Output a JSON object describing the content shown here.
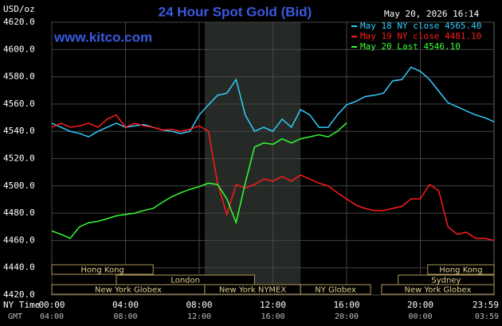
{
  "chart_data": {
    "type": "line",
    "title": "24 Hour Spot Gold (Bid)",
    "unit_label": "USD/oz",
    "site": "www.kitco.com",
    "timestamp": "May 20, 2026 16:14",
    "x_row_label": "NY Time",
    "x2_row_label": "GMT",
    "x": [
      0,
      0.5,
      1,
      1.5,
      2,
      2.5,
      3,
      3.5,
      4,
      4.5,
      5,
      5.5,
      6,
      6.5,
      7,
      7.5,
      8,
      8.5,
      9,
      9.5,
      10,
      10.5,
      11,
      11.5,
      12,
      12.5,
      13,
      13.5,
      14,
      14.5,
      15,
      15.5,
      16,
      16.5,
      17,
      17.5,
      18,
      18.5,
      19,
      19.5,
      20,
      20.5,
      21,
      21.5,
      22,
      22.5,
      23,
      23.5,
      24
    ],
    "series": [
      {
        "name": "May 18 NY close 4565.40",
        "color": "#33ccff",
        "values": [
          4546,
          4543,
          4540,
          4538.5,
          4536,
          4540,
          4543,
          4546,
          4543,
          4544,
          4545,
          4543,
          4541,
          4540,
          4538.5,
          4540,
          4552,
          4559.5,
          4566.5,
          4568,
          4578,
          4552,
          4540,
          4543,
          4540,
          4549,
          4543,
          4556,
          4552,
          4543,
          4543,
          4552,
          4559.5,
          4562,
          4565.5,
          4566.5,
          4568,
          4577,
          4578,
          4587,
          4584,
          4578,
          4569.5,
          4561,
          4558,
          4555,
          4552,
          4550,
          4547
        ]
      },
      {
        "name": "May 19 NY close 4481.10",
        "color": "#ff1a1a",
        "values": [
          4543,
          4546,
          4543,
          4544,
          4546,
          4543,
          4549,
          4552,
          4543,
          4546,
          4544,
          4543,
          4541,
          4541.5,
          4540,
          4541.5,
          4544,
          4540,
          4502,
          4479,
          4501,
          4498.5,
          4501,
          4505,
          4503.5,
          4507,
          4503.5,
          4508,
          4505,
          4502,
          4500,
          4495,
          4490.5,
          4486,
          4483.5,
          4482,
          4482,
          4483.5,
          4485,
          4490.5,
          4490.5,
          4501,
          4496.5,
          4470,
          4464.5,
          4466,
          4461.5,
          4461.5,
          4460
        ]
      },
      {
        "name": "May 20 Last 4546.10",
        "color": "#33ff33",
        "values": [
          4467,
          4464.5,
          4461.5,
          4470,
          4473,
          4474,
          4476,
          4478,
          4479,
          4480,
          4482,
          4483.5,
          4488,
          4492,
          4495,
          4497.5,
          4499.5,
          4502,
          4501,
          4490.5,
          4473,
          4502,
          4528.5,
          4531.5,
          4530.5,
          4534.5,
          4531.5,
          4534.5,
          4536,
          4537.5,
          4536,
          4540,
          4546.1,
          null,
          null,
          null,
          null,
          null,
          null,
          null,
          null,
          null,
          null,
          null,
          null,
          null,
          null,
          null,
          null
        ]
      }
    ],
    "xlim": [
      0,
      24
    ],
    "ylim": [
      4420,
      4620
    ],
    "xticks": [
      {
        "value": 0,
        "label": "00:00"
      },
      {
        "value": 4,
        "label": "04:00"
      },
      {
        "value": 8,
        "label": "08:00"
      },
      {
        "value": 12,
        "label": "12:00"
      },
      {
        "value": 16,
        "label": "16:00"
      },
      {
        "value": 20,
        "label": "20:00"
      },
      {
        "value": 23.983,
        "label": "23:59"
      }
    ],
    "xticks_gmt": [
      "04:00",
      "08:00",
      "12:00",
      "16:00",
      "20:00",
      "00:00",
      "03:59"
    ],
    "yticks": [
      {
        "value": 4420,
        "label": "4420.0"
      },
      {
        "value": 4440,
        "label": "4440.0"
      },
      {
        "value": 4460,
        "label": "4460.0"
      },
      {
        "value": 4480,
        "label": "4480.0"
      },
      {
        "value": 4500,
        "label": "4500.0"
      },
      {
        "value": 4520,
        "label": "4520.0"
      },
      {
        "value": 4540,
        "label": "4540.0"
      },
      {
        "value": 4560,
        "label": "4560.0"
      },
      {
        "value": 4580,
        "label": "4580.0"
      },
      {
        "value": 4600,
        "label": "4600.0"
      },
      {
        "value": 4620,
        "label": "4620.0"
      }
    ],
    "grid": true,
    "shaded_range": [
      8.3,
      13.5
    ],
    "sessions": [
      {
        "label": "Hong Kong",
        "start": 0,
        "end": 5.5,
        "row": 0
      },
      {
        "label": "Hong Kong",
        "start": 20.4,
        "end": 24,
        "row": 0
      },
      {
        "label": "London",
        "start": 3.5,
        "end": 11,
        "row": 1
      },
      {
        "label": "Sydney",
        "start": 18.8,
        "end": 24,
        "row": 1
      },
      {
        "label": "New York Globex",
        "start": 0,
        "end": 8.3,
        "row": 2
      },
      {
        "label": "New York NYMEX",
        "start": 8.3,
        "end": 13.5,
        "row": 2
      },
      {
        "label": "NY Globex",
        "start": 13.5,
        "end": 17.3,
        "row": 2
      },
      {
        "label": "New York Globex",
        "start": 17.9,
        "end": 24,
        "row": 2
      }
    ]
  }
}
